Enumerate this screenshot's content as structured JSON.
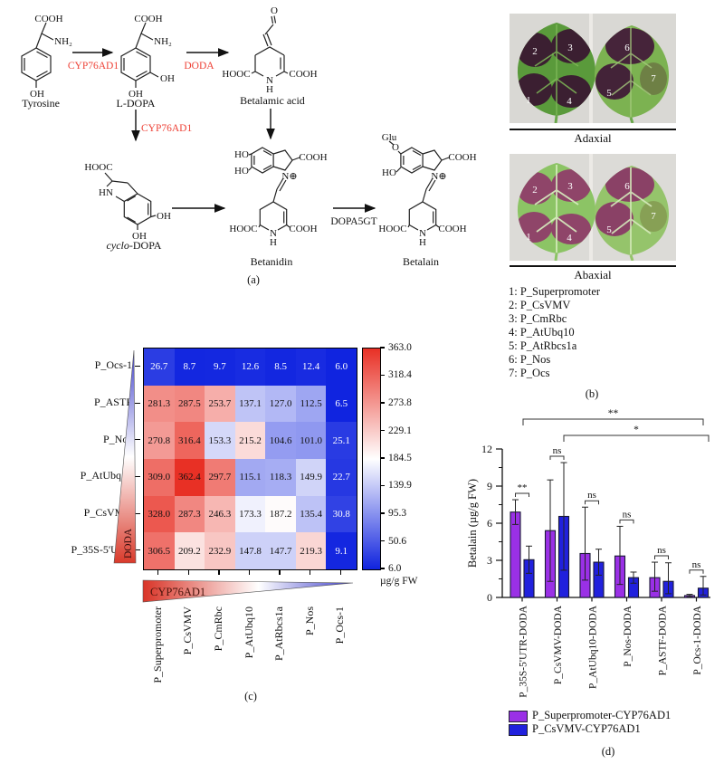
{
  "figure": {
    "panel_labels": {
      "a": "(a)",
      "b": "(b)",
      "c": "(c)",
      "d": "(d)"
    }
  },
  "pathway": {
    "enzyme_color": "#ee4338",
    "enzymes": {
      "tyr_to_dopa": "CYP76AD1",
      "dopa_to_betalamic": "DODA",
      "dopa_to_cyclodopa": "CYP76AD1",
      "betanidin_to_betalain": "DOPA5GT"
    },
    "compounds": {
      "tyrosine": {
        "name": "Tyrosine",
        "groups": [
          "COOH",
          "NH₂",
          "OH"
        ]
      },
      "ldopa": {
        "name": "L-DOPA",
        "groups": [
          "COOH",
          "NH₂",
          "OH",
          "OH"
        ]
      },
      "betalamic": {
        "name": "Betalamic acid",
        "groups": [
          "O",
          "HOOC",
          "COOH",
          "N",
          "H"
        ]
      },
      "cyclo_dopa": {
        "name_italic": "cyclo",
        "name_suffix": "-DOPA",
        "groups": [
          "HOOC",
          "HN",
          "OH",
          "OH"
        ]
      },
      "betanidin": {
        "name": "Betanidin",
        "groups": [
          "HO",
          "HO",
          "N⊕",
          "COOH",
          "HOOC",
          "COOH",
          "N",
          "H"
        ]
      },
      "betalain": {
        "name": "Betalain",
        "groups": [
          "Glu",
          "O",
          "HO",
          "N⊕",
          "COOH",
          "HOOC",
          "COOH",
          "N",
          "H"
        ]
      }
    }
  },
  "section_b": {
    "adaxial_label": "Adaxial",
    "abaxial_label": "Abaxial",
    "numbers": [
      "1",
      "2",
      "3",
      "4",
      "5",
      "6",
      "7"
    ],
    "legend": [
      "1: P_Superpromoter",
      "2: P_CsVMV",
      "3: P_CmRbc",
      "4: P_AtUbq10",
      "5: P_AtRbcs1a",
      "6: P_Nos",
      "7: P_Ocs"
    ]
  },
  "chart_data": [
    {
      "type": "heatmap",
      "rows": [
        "P_Ocs-1",
        "P_ASTF",
        "P_Nos",
        "P_AtUbq10",
        "P_CsVMV",
        "P_35S-5'UTR"
      ],
      "cols": [
        "P_Superpromoter",
        "P_CsVMV",
        "P_CmRbc",
        "P_AtUbq10",
        "P_AtRbcs1a",
        "P_Nos",
        "P_Ocs-1"
      ],
      "values": [
        [
          26.7,
          8.7,
          9.7,
          12.6,
          8.5,
          12.4,
          6.0
        ],
        [
          281.3,
          287.5,
          253.7,
          137.1,
          127.0,
          112.5,
          6.5
        ],
        [
          270.8,
          316.4,
          153.3,
          215.2,
          104.6,
          101.0,
          25.1
        ],
        [
          309.0,
          362.4,
          297.7,
          115.1,
          118.3,
          149.9,
          22.7
        ],
        [
          328.0,
          287.3,
          246.3,
          173.3,
          187.2,
          135.4,
          30.8
        ],
        [
          306.5,
          209.2,
          232.9,
          147.8,
          147.7,
          219.3,
          9.1
        ]
      ],
      "vmin": 6.0,
      "vmax": 363.0,
      "colorbar_ticks": [
        363.0,
        318.4,
        273.8,
        229.1,
        184.5,
        139.9,
        95.3,
        50.6,
        6.0
      ],
      "colorbar_label": "µg/g FW",
      "row_triangle_label": "DODA",
      "col_triangle_label": "CYP76AD1",
      "colormap": "blue-white-red"
    },
    {
      "type": "bar",
      "categories": [
        "P_35S-5'UTR-DODA",
        "P_CsVMV-DODA",
        "P_AtUbq10-DODA",
        "P_Nos-DODA",
        "P_ASTF-DODA",
        "P_Ocs-1-DODA"
      ],
      "series": [
        {
          "name": "P_Superpromoter-CYP76AD1",
          "color": "#9a30e6",
          "values": [
            6.9,
            5.4,
            3.55,
            3.35,
            1.6,
            0.15
          ],
          "err_up": [
            1.0,
            4.1,
            3.75,
            2.4,
            1.25,
            0.1
          ],
          "err_down": [
            1.0,
            4.1,
            2.15,
            2.3,
            1.1,
            0.1
          ]
        },
        {
          "name": "P_CsVMV-CYP76AD1",
          "color": "#2121dd",
          "values": [
            3.05,
            6.55,
            2.85,
            1.6,
            1.3,
            0.75
          ],
          "err_up": [
            1.1,
            4.35,
            1.05,
            0.45,
            1.5,
            0.95
          ],
          "err_down": [
            1.1,
            4.35,
            1.05,
            0.45,
            1.0,
            0.55
          ]
        }
      ],
      "ylabel": "Betalain (µg/g FW)",
      "ylim": [
        0,
        12
      ],
      "yticks": [
        0,
        3,
        6,
        9,
        12
      ],
      "pair_significance": [
        "**",
        "ns",
        "ns",
        "ns",
        "ns",
        "ns"
      ],
      "span_brackets": [
        {
          "label": "**",
          "from": 0,
          "to": 5
        },
        {
          "label": "*",
          "from": 1,
          "to": 5
        }
      ],
      "legend_position": "bottom"
    }
  ]
}
